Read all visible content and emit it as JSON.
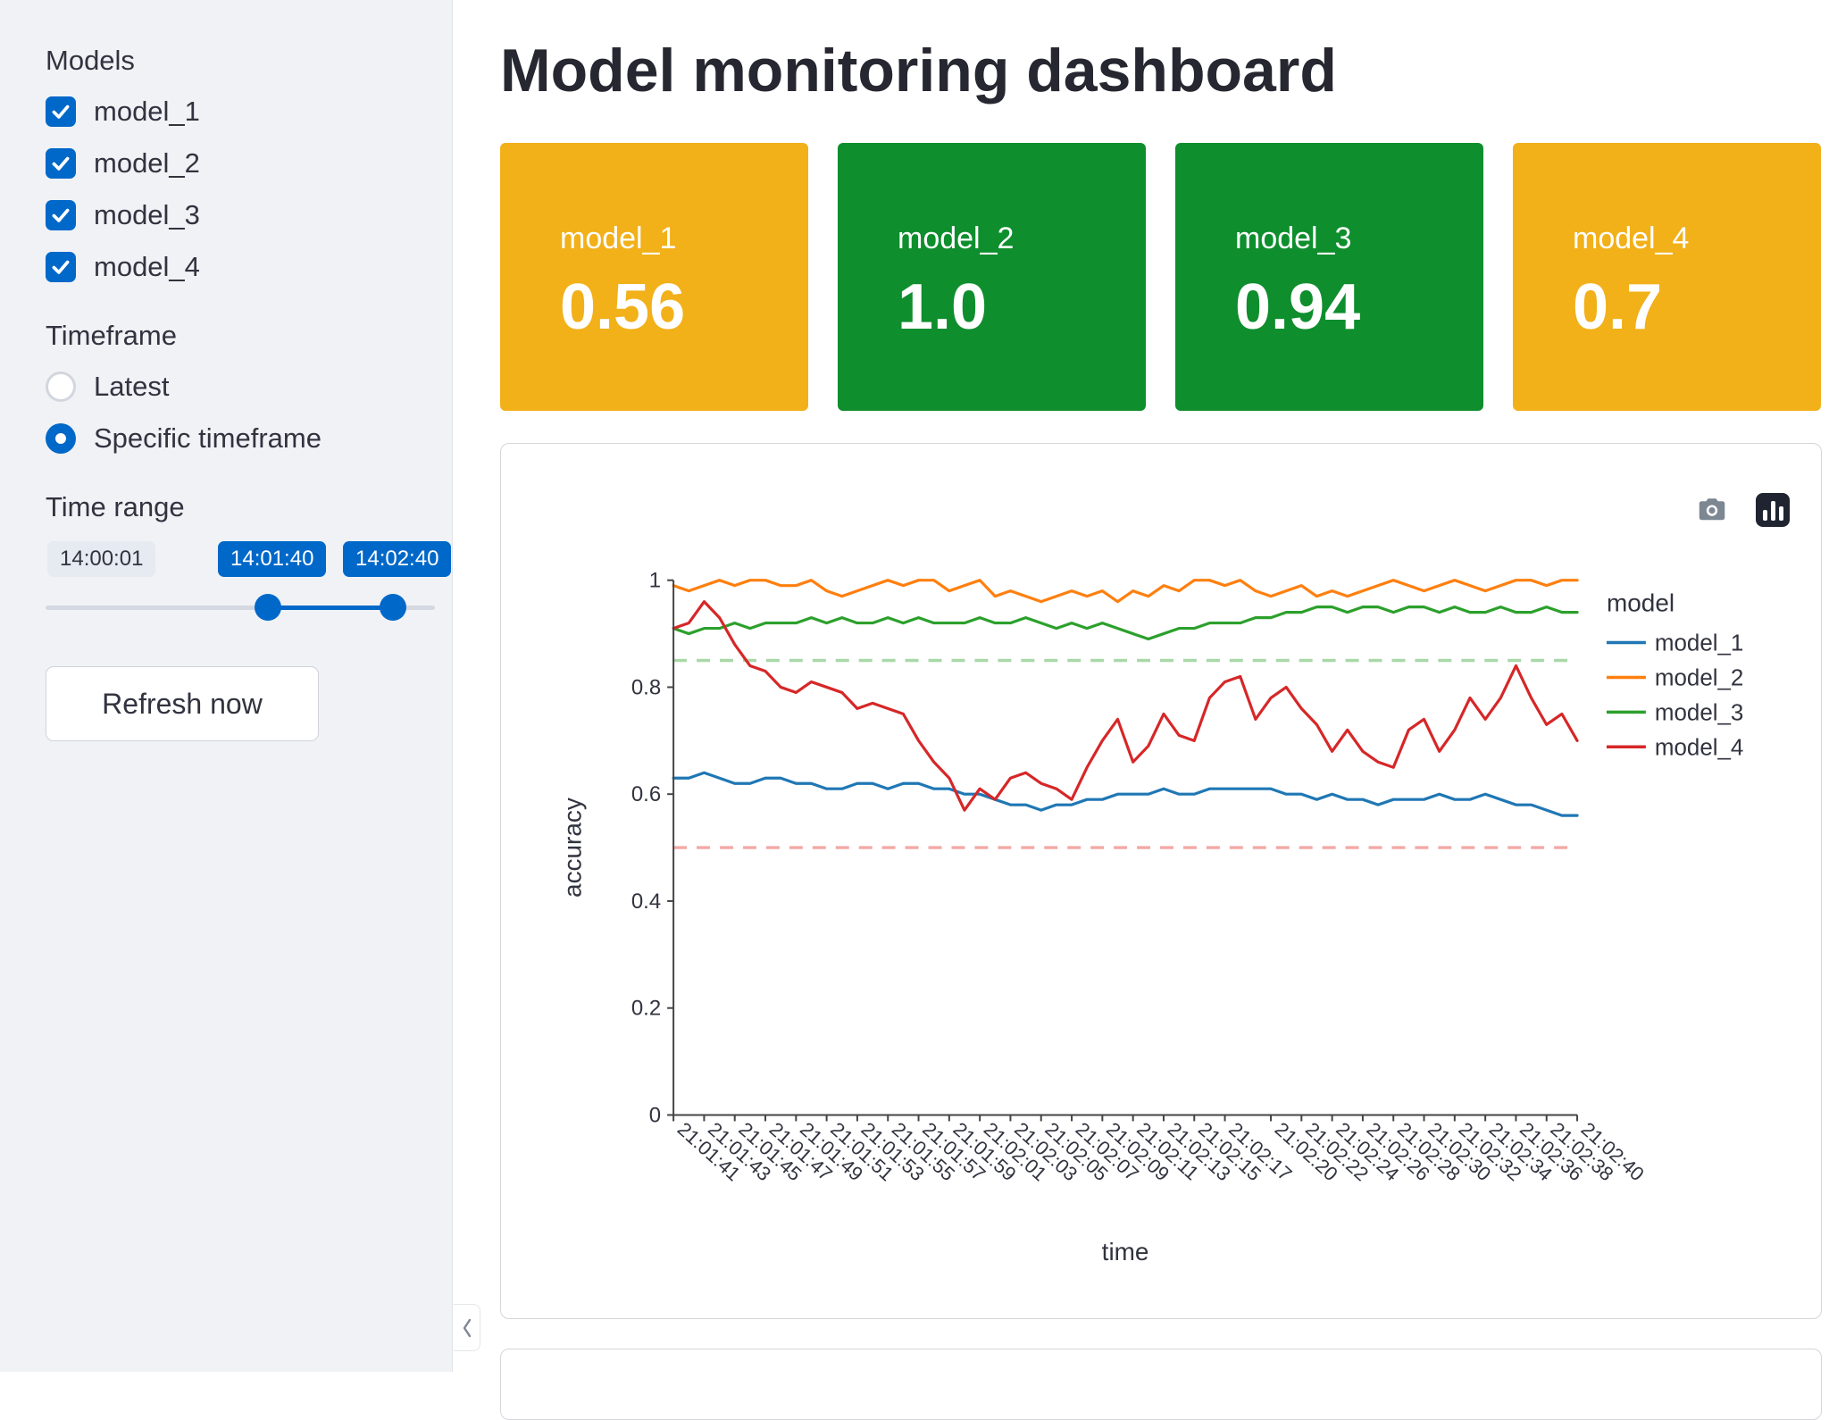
{
  "theme": {
    "accent": "#0068c9",
    "sidebar_bg": "#f0f2f6",
    "card_orange": "#f2b019",
    "card_green": "#0e8e2d"
  },
  "app": {
    "title": "Model monitoring dashboard"
  },
  "sidebar": {
    "models_label": "Models",
    "models": [
      {
        "label": "model_1",
        "checked": true
      },
      {
        "label": "model_2",
        "checked": true
      },
      {
        "label": "model_3",
        "checked": true
      },
      {
        "label": "model_4",
        "checked": true
      }
    ],
    "timeframe_label": "Timeframe",
    "timeframe_options": [
      {
        "label": "Latest",
        "selected": false
      },
      {
        "label": "Specific timeframe",
        "selected": true
      }
    ],
    "time_range_label": "Time range",
    "slider": {
      "min_label": "14:00:01",
      "start_value": "14:01:40",
      "end_value": "14:02:40"
    },
    "refresh_button": "Refresh now",
    "collapse_icon": "chevron-left-icon"
  },
  "cards": [
    {
      "name": "model_1",
      "value": "0.56",
      "color": "#f2b019"
    },
    {
      "name": "model_2",
      "value": "1.0",
      "color": "#0e8e2d"
    },
    {
      "name": "model_3",
      "value": "0.94",
      "color": "#0e8e2d"
    },
    {
      "name": "model_4",
      "value": "0.7",
      "color": "#f2b019"
    }
  ],
  "modebar": {
    "buttons": [
      "camera-download-icon",
      "plotly-logo-icon"
    ]
  },
  "chart_data": {
    "type": "line",
    "title": "",
    "xlabel": "time",
    "ylabel": "accuracy",
    "ylim": [
      0,
      1
    ],
    "yticks": [
      0,
      0.2,
      0.4,
      0.6,
      0.8,
      1
    ],
    "grid": false,
    "legend_title": "model",
    "legend_position": "right",
    "x": [
      "21:01:41",
      "21:01:42",
      "21:01:43",
      "21:01:44",
      "21:01:45",
      "21:01:46",
      "21:01:47",
      "21:01:48",
      "21:01:49",
      "21:01:50",
      "21:01:51",
      "21:01:52",
      "21:01:53",
      "21:01:54",
      "21:01:55",
      "21:01:56",
      "21:01:57",
      "21:01:58",
      "21:01:59",
      "21:02:00",
      "21:02:01",
      "21:02:02",
      "21:02:03",
      "21:02:04",
      "21:02:05",
      "21:02:06",
      "21:02:07",
      "21:02:08",
      "21:02:09",
      "21:02:10",
      "21:02:11",
      "21:02:12",
      "21:02:13",
      "21:02:14",
      "21:02:15",
      "21:02:16",
      "21:02:17",
      "21:02:18",
      "21:02:19",
      "21:02:20",
      "21:02:21",
      "21:02:22",
      "21:02:23",
      "21:02:24",
      "21:02:25",
      "21:02:26",
      "21:02:27",
      "21:02:28",
      "21:02:29",
      "21:02:30",
      "21:02:31",
      "21:02:32",
      "21:02:33",
      "21:02:34",
      "21:02:35",
      "21:02:36",
      "21:02:37",
      "21:02:38",
      "21:02:39",
      "21:02:40"
    ],
    "xticks": [
      "21:01:41",
      "21:01:43",
      "21:01:45",
      "21:01:47",
      "21:01:49",
      "21:01:51",
      "21:01:53",
      "21:01:55",
      "21:01:57",
      "21:01:59",
      "21:02:01",
      "21:02:03",
      "21:02:05",
      "21:02:07",
      "21:02:09",
      "21:02:11",
      "21:02:13",
      "21:02:15",
      "21:02:17",
      "21:02:20",
      "21:02:22",
      "21:02:24",
      "21:02:26",
      "21:02:28",
      "21:02:30",
      "21:02:32",
      "21:02:34",
      "21:02:36",
      "21:02:38",
      "21:02:40"
    ],
    "series": [
      {
        "name": "model_1",
        "color": "#1f77b4",
        "values": [
          0.63,
          0.63,
          0.64,
          0.63,
          0.62,
          0.62,
          0.63,
          0.63,
          0.62,
          0.62,
          0.61,
          0.61,
          0.62,
          0.62,
          0.61,
          0.62,
          0.62,
          0.61,
          0.61,
          0.6,
          0.6,
          0.59,
          0.58,
          0.58,
          0.57,
          0.58,
          0.58,
          0.59,
          0.59,
          0.6,
          0.6,
          0.6,
          0.61,
          0.6,
          0.6,
          0.61,
          0.61,
          0.61,
          0.61,
          0.61,
          0.6,
          0.6,
          0.59,
          0.6,
          0.59,
          0.59,
          0.58,
          0.59,
          0.59,
          0.59,
          0.6,
          0.59,
          0.59,
          0.6,
          0.59,
          0.58,
          0.58,
          0.57,
          0.56,
          0.56
        ]
      },
      {
        "name": "model_2",
        "color": "#ff7f0e",
        "values": [
          0.99,
          0.98,
          0.99,
          1.0,
          0.99,
          1.0,
          1.0,
          0.99,
          0.99,
          1.0,
          0.98,
          0.97,
          0.98,
          0.99,
          1.0,
          0.99,
          1.0,
          1.0,
          0.98,
          0.99,
          1.0,
          0.97,
          0.98,
          0.97,
          0.96,
          0.97,
          0.98,
          0.97,
          0.98,
          0.96,
          0.98,
          0.97,
          0.99,
          0.98,
          1.0,
          1.0,
          0.99,
          1.0,
          0.98,
          0.97,
          0.98,
          0.99,
          0.97,
          0.98,
          0.97,
          0.98,
          0.99,
          1.0,
          0.99,
          0.98,
          0.99,
          1.0,
          0.99,
          0.98,
          0.99,
          1.0,
          1.0,
          0.99,
          1.0,
          1.0
        ]
      },
      {
        "name": "model_3",
        "color": "#2ca02c",
        "values": [
          0.91,
          0.9,
          0.91,
          0.91,
          0.92,
          0.91,
          0.92,
          0.92,
          0.92,
          0.93,
          0.92,
          0.93,
          0.92,
          0.92,
          0.93,
          0.92,
          0.93,
          0.92,
          0.92,
          0.92,
          0.93,
          0.92,
          0.92,
          0.93,
          0.92,
          0.91,
          0.92,
          0.91,
          0.92,
          0.91,
          0.9,
          0.89,
          0.9,
          0.91,
          0.91,
          0.92,
          0.92,
          0.92,
          0.93,
          0.93,
          0.94,
          0.94,
          0.95,
          0.95,
          0.94,
          0.95,
          0.95,
          0.94,
          0.95,
          0.95,
          0.94,
          0.95,
          0.94,
          0.94,
          0.95,
          0.94,
          0.94,
          0.95,
          0.94,
          0.94
        ]
      },
      {
        "name": "model_4",
        "color": "#d62728",
        "values": [
          0.91,
          0.92,
          0.96,
          0.93,
          0.88,
          0.84,
          0.83,
          0.8,
          0.79,
          0.81,
          0.8,
          0.79,
          0.76,
          0.77,
          0.76,
          0.75,
          0.7,
          0.66,
          0.63,
          0.57,
          0.61,
          0.59,
          0.63,
          0.64,
          0.62,
          0.61,
          0.59,
          0.65,
          0.7,
          0.74,
          0.66,
          0.69,
          0.75,
          0.71,
          0.7,
          0.78,
          0.81,
          0.82,
          0.74,
          0.78,
          0.8,
          0.76,
          0.73,
          0.68,
          0.72,
          0.68,
          0.66,
          0.65,
          0.72,
          0.74,
          0.68,
          0.72,
          0.78,
          0.74,
          0.78,
          0.84,
          0.78,
          0.73,
          0.75,
          0.7
        ]
      }
    ],
    "thresholds": [
      {
        "value": 0.85,
        "color": "#a9d8a8",
        "dash": true
      },
      {
        "value": 0.5,
        "color": "#f3a9a5",
        "dash": true
      }
    ]
  }
}
